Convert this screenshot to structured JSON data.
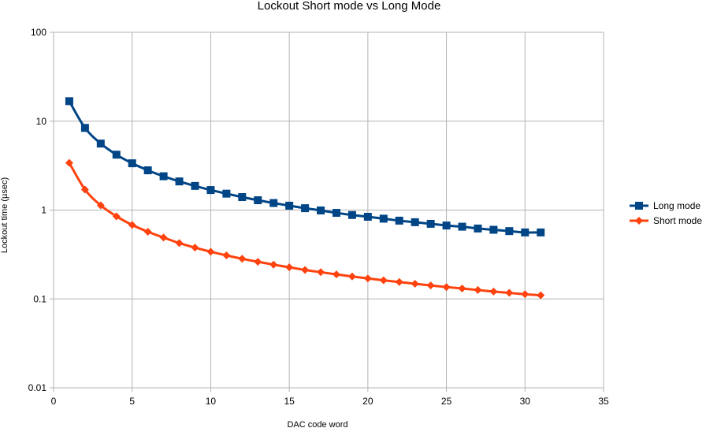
{
  "chart_data": {
    "type": "line",
    "title": "Lockout Short mode vs Long Mode",
    "xlabel": "DAC code word",
    "ylabel": "Lockout time (µsec)",
    "xlim": [
      0,
      35
    ],
    "ylim": [
      0.01,
      100
    ],
    "yscale": "log",
    "grid": true,
    "legend_position": "right",
    "x_ticks": [
      "0",
      "5",
      "10",
      "15",
      "20",
      "25",
      "30",
      "35"
    ],
    "y_ticks": [
      "0.01",
      "0.1",
      "1",
      "10",
      "100"
    ],
    "x": [
      1,
      2,
      3,
      4,
      5,
      6,
      7,
      8,
      9,
      10,
      11,
      12,
      13,
      14,
      15,
      16,
      17,
      18,
      19,
      20,
      21,
      22,
      23,
      24,
      25,
      26,
      27,
      28,
      29,
      30,
      31
    ],
    "series": [
      {
        "name": "Long mode",
        "color": "#004586",
        "marker": "square",
        "values": [
          16.8,
          8.4,
          5.6,
          4.2,
          3.36,
          2.8,
          2.4,
          2.1,
          1.87,
          1.68,
          1.53,
          1.4,
          1.29,
          1.2,
          1.12,
          1.05,
          0.99,
          0.93,
          0.88,
          0.84,
          0.8,
          0.76,
          0.73,
          0.7,
          0.67,
          0.65,
          0.62,
          0.6,
          0.58,
          0.56,
          0.56
        ]
      },
      {
        "name": "Short mode",
        "color": "#ff420e",
        "marker": "diamond",
        "values": [
          3.4,
          1.7,
          1.13,
          0.85,
          0.68,
          0.57,
          0.49,
          0.425,
          0.378,
          0.34,
          0.309,
          0.283,
          0.262,
          0.243,
          0.227,
          0.212,
          0.2,
          0.189,
          0.179,
          0.17,
          0.162,
          0.155,
          0.148,
          0.142,
          0.136,
          0.131,
          0.126,
          0.121,
          0.117,
          0.113,
          0.11
        ]
      }
    ]
  }
}
